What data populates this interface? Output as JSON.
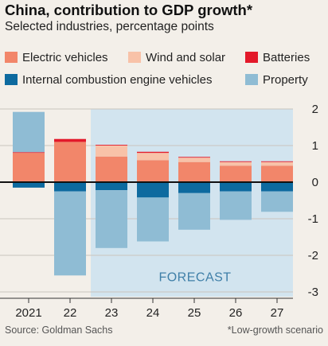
{
  "title": "China, contribution to GDP growth*",
  "subtitle": "Selected industries, percentage points",
  "source": "Source: Goldman Sachs",
  "footnote": "*Low-growth scenario",
  "forecast_label": "FORECAST",
  "colors": {
    "Electric vehicles": "#f2866a",
    "Wind and solar": "#f8c2a8",
    "Batteries": "#e3192a",
    "Internal combustion engine vehicles": "#0d6a9f",
    "Property": "#8fbcd4",
    "forecast_shade": "#d2e4ef",
    "zero_line": "#111111"
  },
  "chart_data": {
    "type": "bar",
    "stacked": true,
    "title": "China, contribution to GDP growth*",
    "subtitle": "Selected industries, percentage points",
    "categories": [
      "2021",
      "22",
      "23",
      "24",
      "25",
      "26",
      "27"
    ],
    "forecast_from": "23",
    "ylim": [
      -3,
      2
    ],
    "yticks": [
      2,
      1,
      0,
      -1,
      -2,
      -3
    ],
    "ytick_labels": [
      "2",
      "1",
      "0",
      "-1",
      "-2",
      "-3"
    ],
    "legend_position": "top",
    "series": [
      {
        "name": "Electric vehicles",
        "values": [
          0.8,
          1.1,
          0.7,
          0.6,
          0.55,
          0.45,
          0.45
        ]
      },
      {
        "name": "Wind and solar",
        "values": [
          0.0,
          0.0,
          0.3,
          0.2,
          0.12,
          0.1,
          0.1
        ]
      },
      {
        "name": "Batteries",
        "values": [
          0.02,
          0.08,
          0.02,
          0.03,
          0.02,
          0.02,
          0.02
        ]
      },
      {
        "name": "Internal combustion engine vehicles",
        "values": [
          -0.15,
          -0.25,
          -0.22,
          -0.42,
          -0.3,
          -0.25,
          -0.25
        ]
      },
      {
        "name": "Property",
        "values": [
          1.1,
          -2.3,
          -1.58,
          -1.2,
          -1.0,
          -0.78,
          -0.56
        ]
      }
    ]
  },
  "legend": [
    {
      "label": "Electric vehicles"
    },
    {
      "label": "Wind and solar"
    },
    {
      "label": "Batteries"
    },
    {
      "label": "Internal combustion engine vehicles"
    },
    {
      "label": "Property"
    }
  ]
}
